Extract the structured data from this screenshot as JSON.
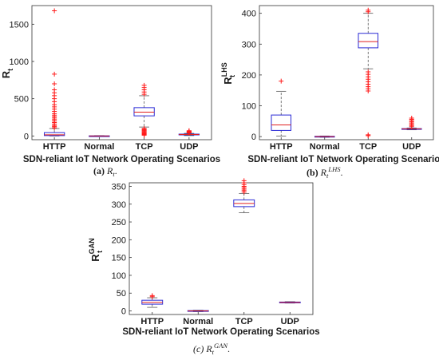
{
  "chart_data": [
    {
      "type": "boxplot",
      "categories": [
        "HTTP",
        "Normal",
        "TCP",
        "UDP"
      ],
      "xlabel": "SDN-reliant IoT Network Operating Scenarios",
      "ylabel": {
        "main": "R",
        "sub": "t"
      },
      "ylim": [
        -50,
        1750
      ],
      "yticks": [
        0,
        500,
        1000,
        1500
      ],
      "caption": {
        "tag": "(a)",
        "main": "R",
        "sub": "t",
        "sup": "",
        "end": "."
      },
      "boxes": [
        {
          "category": "HTTP",
          "whisker_low": 0,
          "q1": 5,
          "median": 15,
          "q3": 45,
          "whisker_high": 100,
          "outliers": [
            110,
            125,
            140,
            160,
            180,
            200,
            220,
            240,
            260,
            280,
            300,
            330,
            360,
            390,
            420,
            460,
            500,
            540,
            580,
            620,
            700,
            830,
            1680
          ]
        },
        {
          "category": "Normal",
          "whisker_low": -5,
          "q1": -2,
          "median": 0,
          "q3": 2,
          "whisker_high": 5,
          "outliers": []
        },
        {
          "category": "TCP",
          "whisker_low": 120,
          "q1": 270,
          "median": 320,
          "q3": 380,
          "whisker_high": 540,
          "outliers": [
            10,
            20,
            30,
            40,
            50,
            60,
            70,
            80,
            90,
            100,
            560,
            590,
            620,
            650,
            680
          ]
        },
        {
          "category": "UDP",
          "whisker_low": 5,
          "q1": 15,
          "median": 20,
          "q3": 25,
          "whisker_high": 35,
          "outliers": [
            40,
            45,
            50,
            55,
            60,
            65,
            70
          ]
        }
      ]
    },
    {
      "type": "boxplot",
      "categories": [
        "HTTP",
        "Normal",
        "TCP",
        "UDP"
      ],
      "xlabel": "SDN-reliant IoT Network Operating Scenarios",
      "ylabel": {
        "main": "R",
        "sub": "t",
        "sup": "LHS"
      },
      "ylim": [
        -10,
        425
      ],
      "yticks": [
        0,
        100,
        200,
        300,
        400
      ],
      "caption": {
        "tag": "(b)",
        "main": "R",
        "sub": "t",
        "sup": "LHS",
        "end": "."
      },
      "boxes": [
        {
          "category": "HTTP",
          "whisker_low": 2,
          "q1": 20,
          "median": 38,
          "q3": 70,
          "whisker_high": 147,
          "outliers": [
            180
          ]
        },
        {
          "category": "Normal",
          "whisker_low": -2,
          "q1": -1,
          "median": 0,
          "q3": 1,
          "whisker_high": 2,
          "outliers": []
        },
        {
          "category": "TCP",
          "whisker_low": 220,
          "q1": 288,
          "median": 308,
          "q3": 335,
          "whisker_high": 400,
          "outliers": [
            3,
            6,
            148,
            155,
            162,
            170,
            178,
            186,
            194,
            202,
            210,
            405,
            410
          ]
        },
        {
          "category": "UDP",
          "whisker_low": 22,
          "q1": 24,
          "median": 25,
          "q3": 26,
          "whisker_high": 28,
          "outliers": [
            32,
            36,
            40,
            44,
            48,
            52,
            56,
            60
          ]
        }
      ]
    },
    {
      "type": "boxplot",
      "categories": [
        "HTTP",
        "Normal",
        "TCP",
        "UDP"
      ],
      "xlabel": "SDN-reliant IoT Network Operating Scenarios",
      "ylabel": {
        "main": "R",
        "sub": "t",
        "sup": "GAN"
      },
      "ylim": [
        -10,
        360
      ],
      "yticks": [
        0,
        50,
        100,
        150,
        200,
        250,
        300,
        350
      ],
      "caption": {
        "tag": "(c)",
        "main": "R",
        "sub": "t",
        "sup": "GAN",
        "end": "."
      },
      "boxes": [
        {
          "category": "HTTP",
          "whisker_low": 10,
          "q1": 19,
          "median": 24,
          "q3": 30,
          "whisker_high": 37,
          "outliers": [
            40,
            43
          ]
        },
        {
          "category": "Normal",
          "whisker_low": -2,
          "q1": -1,
          "median": 0,
          "q3": 1,
          "whisker_high": 2,
          "outliers": []
        },
        {
          "category": "TCP",
          "whisker_low": 276,
          "q1": 293,
          "median": 302,
          "q3": 312,
          "whisker_high": 330,
          "outliers": [
            334,
            338,
            342,
            346,
            350,
            355,
            360,
            366
          ]
        },
        {
          "category": "UDP",
          "whisker_low": 22,
          "q1": 23,
          "median": 24,
          "q3": 25,
          "whisker_high": 26,
          "outliers": []
        }
      ]
    }
  ],
  "colors": {
    "box": "#2b2bd6",
    "median": "#e02020",
    "whisker": "#555555",
    "outlier": "#ff1a1a",
    "axis": "#333333",
    "text": "#1a1a1a"
  }
}
